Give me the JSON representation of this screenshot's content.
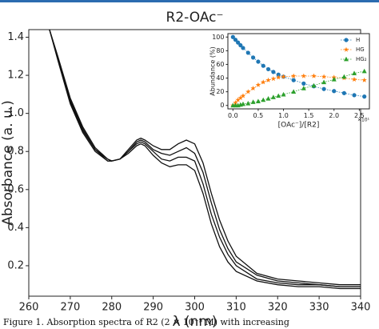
{
  "charts": [
    {
      "type": "line",
      "title": "R2-OAc⁻",
      "xlabel": "λ (nm)",
      "ylabel": "Absorbance (a. u.)",
      "color": "#111111",
      "x": [
        265,
        267,
        270,
        273,
        276,
        279,
        280,
        282,
        284,
        286,
        287,
        288,
        290,
        292,
        294,
        296,
        298,
        300,
        302,
        304,
        306,
        308,
        310,
        315,
        320,
        325,
        330,
        335,
        340
      ],
      "series": [
        {
          "values": [
            1.44,
            1.28,
            1.05,
            0.9,
            0.8,
            0.75,
            0.75,
            0.76,
            0.79,
            0.83,
            0.84,
            0.83,
            0.78,
            0.74,
            0.72,
            0.73,
            0.73,
            0.7,
            0.58,
            0.42,
            0.3,
            0.22,
            0.17,
            0.12,
            0.1,
            0.09,
            0.09,
            0.08,
            0.08
          ]
        },
        {
          "values": [
            1.44,
            1.29,
            1.06,
            0.91,
            0.81,
            0.75,
            0.75,
            0.76,
            0.8,
            0.84,
            0.85,
            0.84,
            0.8,
            0.76,
            0.75,
            0.77,
            0.77,
            0.75,
            0.63,
            0.47,
            0.35,
            0.26,
            0.2,
            0.13,
            0.11,
            0.1,
            0.1,
            0.09,
            0.09
          ]
        },
        {
          "values": [
            1.44,
            1.29,
            1.07,
            0.92,
            0.81,
            0.76,
            0.75,
            0.76,
            0.8,
            0.85,
            0.86,
            0.85,
            0.81,
            0.79,
            0.78,
            0.8,
            0.82,
            0.79,
            0.69,
            0.53,
            0.39,
            0.29,
            0.22,
            0.15,
            0.12,
            0.11,
            0.1,
            0.09,
            0.09
          ]
        },
        {
          "values": [
            1.44,
            1.3,
            1.08,
            0.93,
            0.82,
            0.76,
            0.75,
            0.76,
            0.81,
            0.86,
            0.87,
            0.86,
            0.83,
            0.81,
            0.81,
            0.84,
            0.86,
            0.84,
            0.74,
            0.58,
            0.44,
            0.33,
            0.25,
            0.16,
            0.13,
            0.12,
            0.11,
            0.1,
            0.1
          ]
        }
      ],
      "xlim": [
        260,
        340
      ],
      "xticks": [
        260,
        270,
        280,
        290,
        300,
        310,
        320,
        330,
        340
      ],
      "ylim": [
        0.04,
        1.44
      ],
      "yticks": [
        0.2,
        0.4,
        0.6,
        0.8,
        {
          "value": 1,
          "label": "1.0"
        },
        1.2,
        1.4
      ]
    },
    {
      "type": "scatter",
      "xlabel": "[OAc⁻]/[R2]",
      "ylabel": "Abundance (%)",
      "x_offset_label": "×10¹",
      "legend": "upper right",
      "x": [
        0,
        0.05,
        0.1,
        0.15,
        0.2,
        0.3,
        0.4,
        0.5,
        0.6,
        0.7,
        0.8,
        0.9,
        1.0,
        1.2,
        1.4,
        1.6,
        1.8,
        2.0,
        2.2,
        2.4,
        2.6
      ],
      "series": [
        {
          "name": "H",
          "color": "#1f77b4",
          "marker": "circle",
          "values": [
            100,
            96,
            92,
            88,
            84,
            77,
            70,
            64,
            58,
            53,
            49,
            45,
            42,
            37,
            32,
            28,
            24,
            21,
            18,
            15,
            13
          ]
        },
        {
          "name": "HG",
          "color": "#ff7f0e",
          "marker": "star",
          "values": [
            0,
            4,
            8,
            11,
            14,
            20,
            25,
            30,
            34,
            37,
            39,
            41,
            42,
            43,
            43,
            43,
            42,
            41,
            40,
            38,
            37
          ]
        },
        {
          "name": "HG₂",
          "color": "#2ca02c",
          "marker": "triangle",
          "values": [
            0,
            0,
            0,
            1,
            2,
            3,
            5,
            6,
            8,
            10,
            12,
            14,
            16,
            20,
            25,
            29,
            34,
            38,
            42,
            47,
            50
          ]
        }
      ],
      "xlim": [
        -0.1,
        2.7
      ],
      "xticks": [
        {
          "value": 0,
          "label": "0.0"
        },
        0.5,
        {
          "value": 1,
          "label": "1.0"
        },
        1.5,
        {
          "value": 2,
          "label": "2.0"
        },
        2.5
      ],
      "ylim": [
        -5,
        105
      ],
      "yticks": [
        0,
        20,
        40,
        60,
        80,
        100
      ]
    }
  ],
  "caption": "Figure 1. Absorption spectra of R2 (2 × 10⁻⁵ M) with increasing"
}
